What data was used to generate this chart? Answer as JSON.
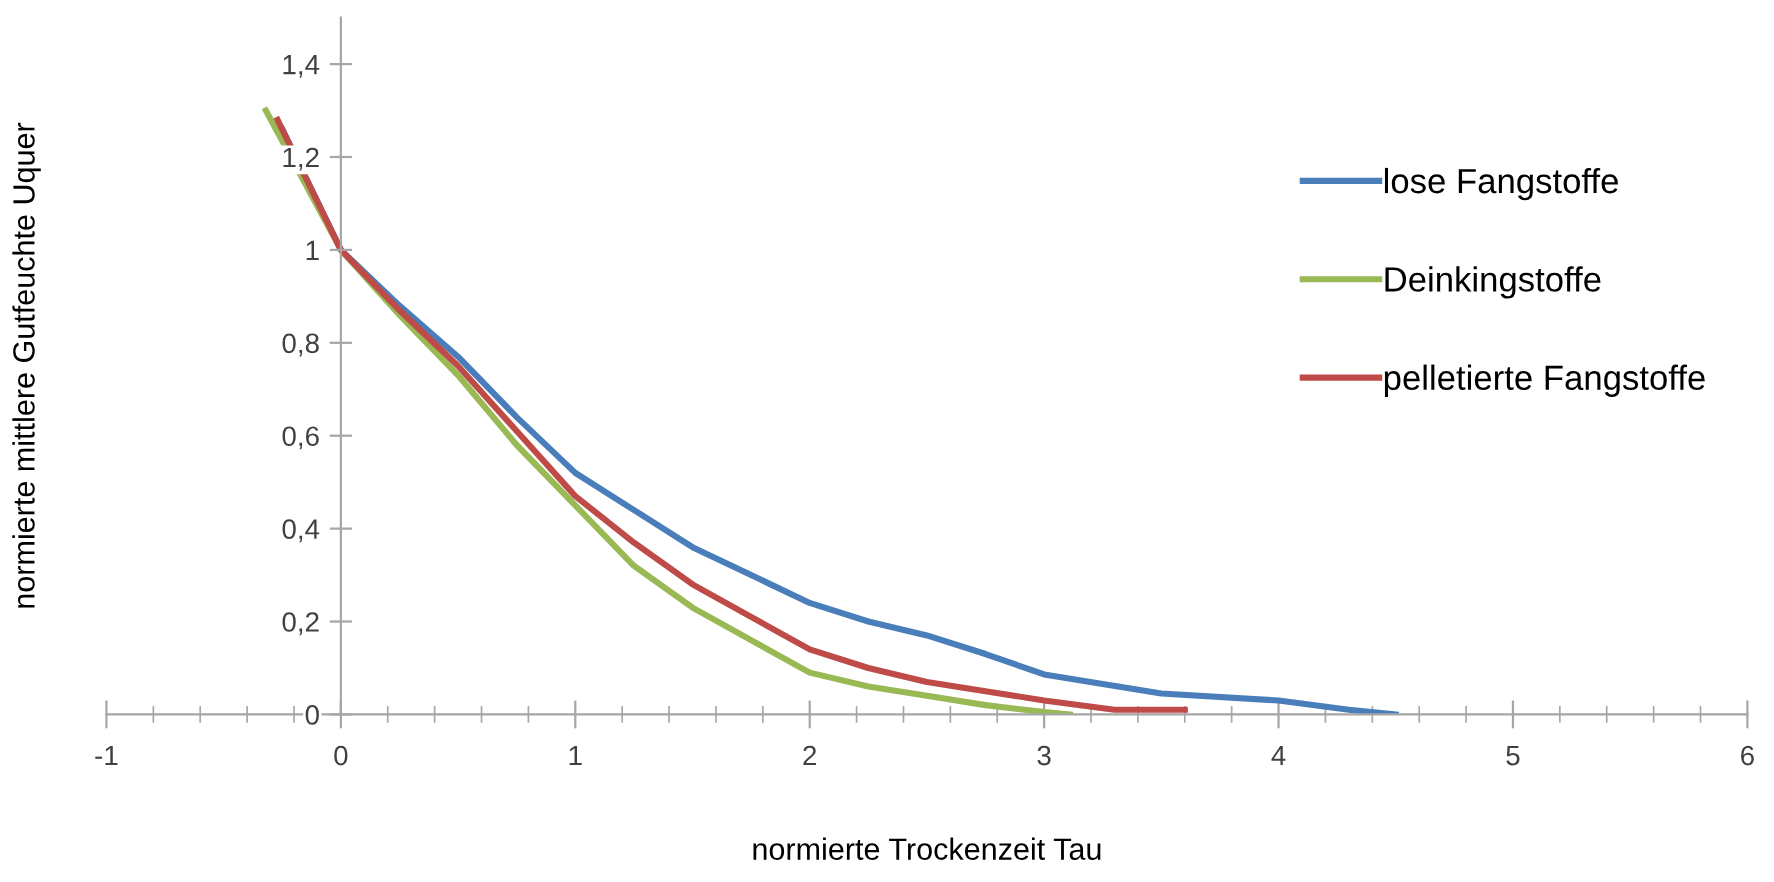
{
  "chart_data": {
    "type": "line",
    "xlabel": "normierte Trockenzeit Tau",
    "ylabel": "normierte mittlere Gutfeuchte Uquer",
    "xlim": [
      -1,
      6
    ],
    "xticks": [
      -1,
      0,
      1,
      2,
      3,
      4,
      5,
      6
    ],
    "ylim": [
      0,
      1.5
    ],
    "yticks": [
      0,
      {
        "value": 0.2,
        "label": "0,2"
      },
      {
        "value": 0.4,
        "label": "0,4"
      },
      {
        "value": 0.6,
        "label": "0,6"
      },
      {
        "value": 0.8,
        "label": "0,8"
      },
      1,
      {
        "value": 1.2,
        "label": "1,2"
      },
      {
        "value": 1.4,
        "label": "1,4"
      }
    ],
    "grid": false,
    "legend": "right",
    "marker": "none",
    "line_style": "solid",
    "series": [
      {
        "name": "lose Fangstoffe",
        "color": "#4a7ebb",
        "x": [
          -0.25,
          0,
          0.25,
          0.5,
          0.75,
          1,
          1.25,
          1.5,
          1.75,
          2,
          2.25,
          2.5,
          2.75,
          3,
          3.5,
          4,
          4.3,
          4.5
        ],
        "values": [
          1.26,
          1,
          0.88,
          0.77,
          0.64,
          0.52,
          0.44,
          0.36,
          0.3,
          0.24,
          0.2,
          0.17,
          0.13,
          0.086,
          0.045,
          0.03,
          0.01,
          0
        ]
      },
      {
        "name": "Deinkingstoffe",
        "color": "#98b954",
        "x": [
          -0.32,
          0,
          0.25,
          0.5,
          0.75,
          1,
          1.25,
          1.5,
          1.75,
          2,
          2.25,
          2.5,
          2.75,
          3,
          3.11
        ],
        "values": [
          1.3,
          1,
          0.86,
          0.73,
          0.58,
          0.45,
          0.32,
          0.23,
          0.16,
          0.09,
          0.06,
          0.04,
          0.02,
          0.005,
          0
        ]
      },
      {
        "name": "pelletierte Fangstoffe",
        "color": "#be4b48",
        "x": [
          -0.27,
          0,
          0.25,
          0.5,
          0.75,
          1,
          1.25,
          1.5,
          1.75,
          2,
          2.25,
          2.5,
          2.75,
          3,
          3.3,
          3.6
        ],
        "values": [
          1.28,
          1,
          0.87,
          0.75,
          0.61,
          0.47,
          0.37,
          0.28,
          0.21,
          0.14,
          0.1,
          0.07,
          0.05,
          0.03,
          0.01,
          0.01
        ]
      }
    ]
  }
}
